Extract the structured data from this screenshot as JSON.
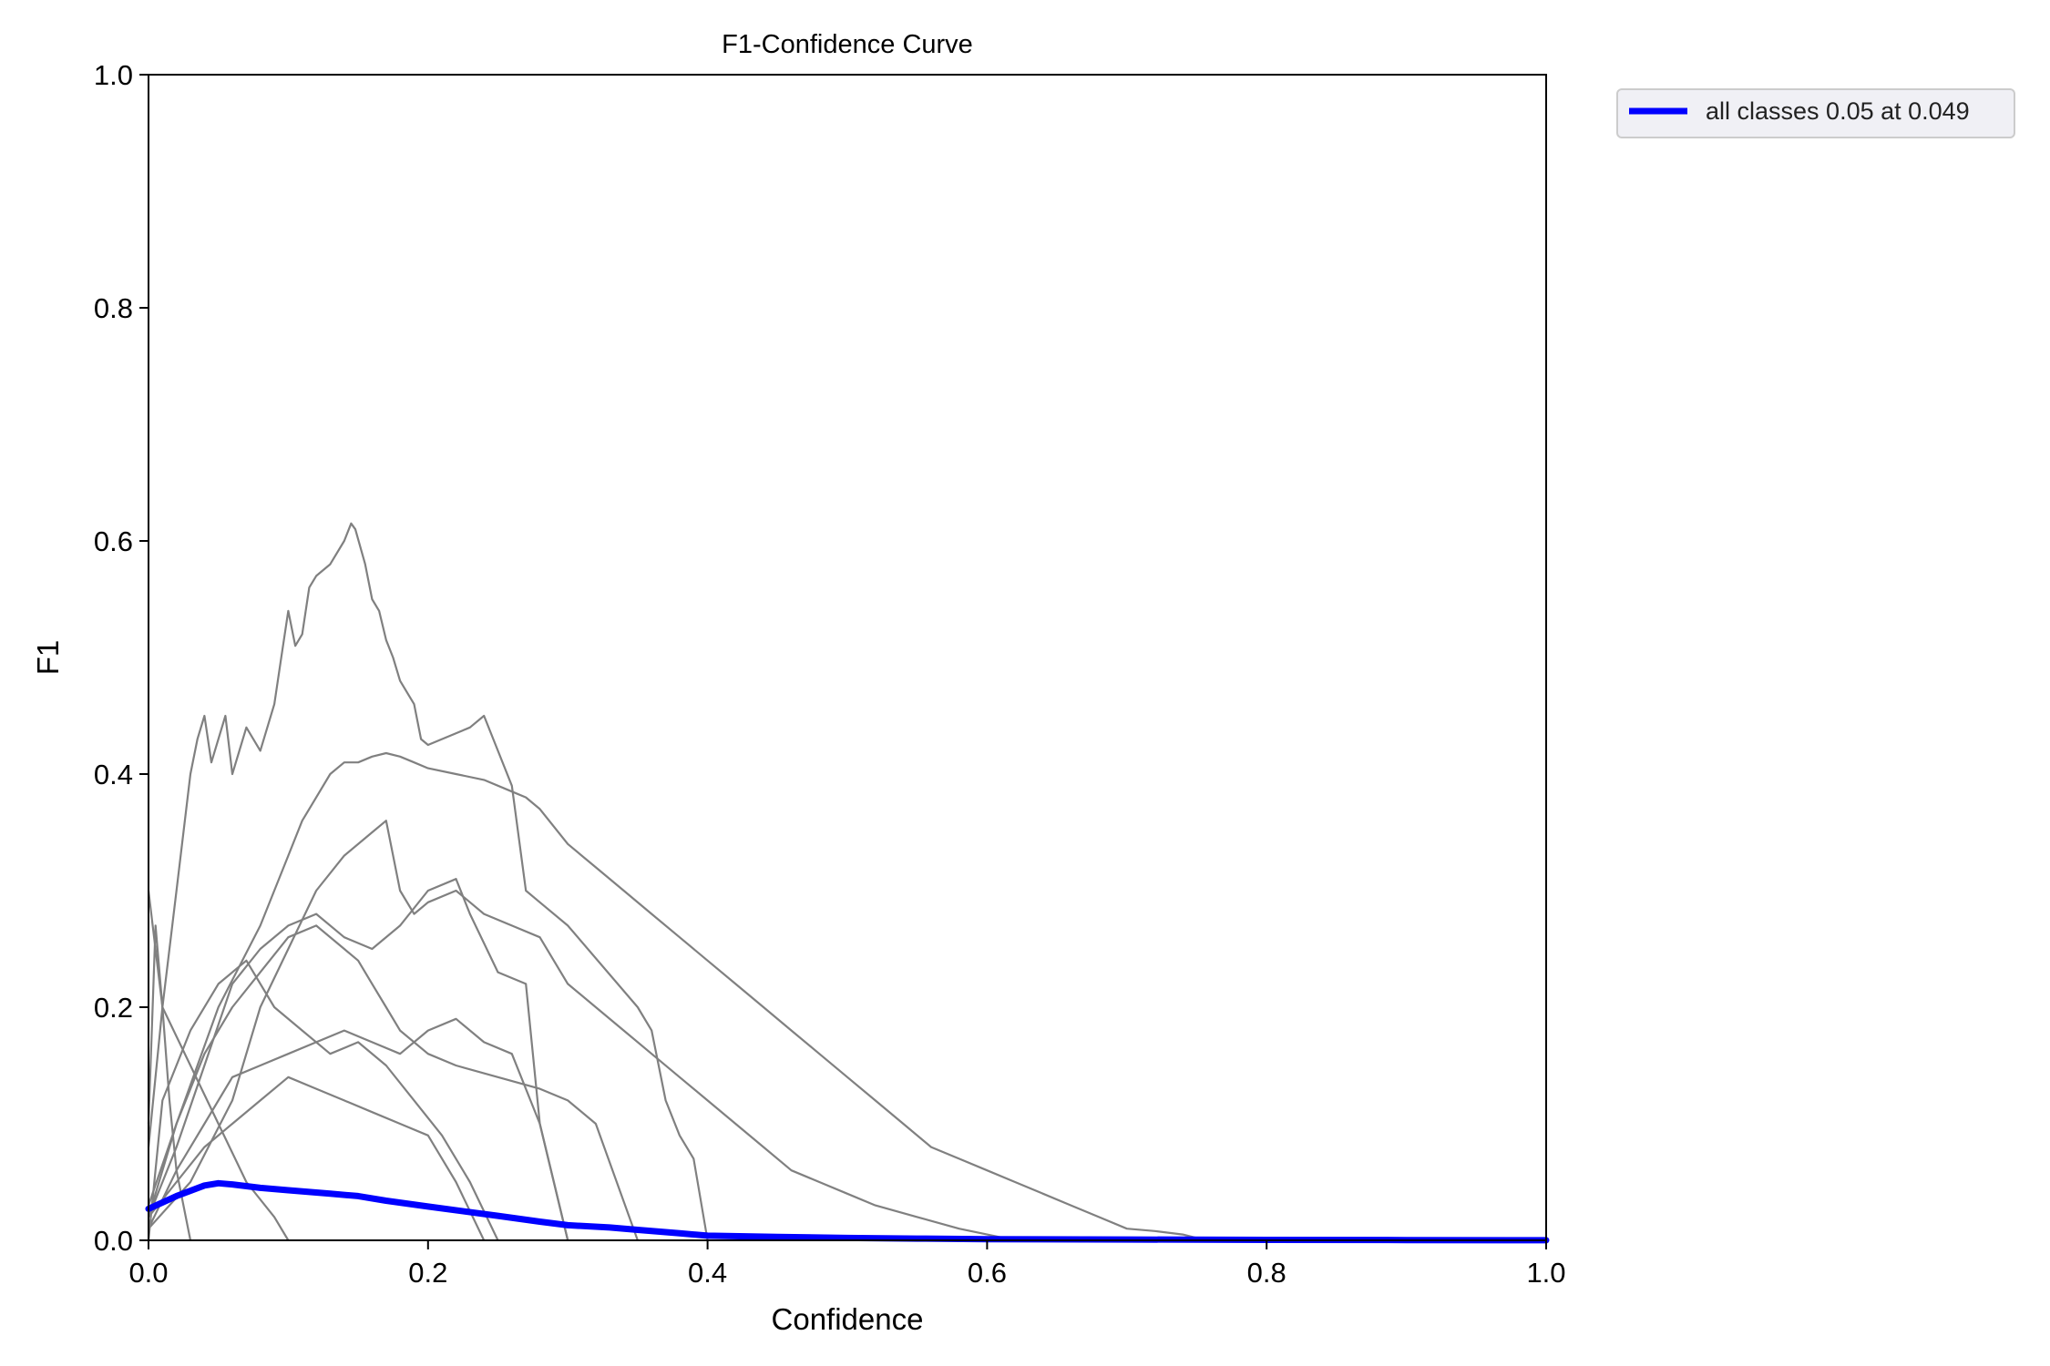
{
  "chart_data": {
    "type": "line",
    "title": "F1-Confidence Curve",
    "xlabel": "Confidence",
    "ylabel": "F1",
    "xlim": [
      0,
      1
    ],
    "ylim": [
      0,
      1
    ],
    "xticks": [
      0.0,
      0.2,
      0.4,
      0.6,
      0.8,
      1.0
    ],
    "yticks": [
      0.0,
      0.2,
      0.4,
      0.6,
      0.8,
      1.0
    ],
    "xtick_labels": [
      "0.0",
      "0.2",
      "0.4",
      "0.6",
      "0.8",
      "1.0"
    ],
    "ytick_labels": [
      "0.0",
      "0.2",
      "0.4",
      "0.6",
      "0.8",
      "1.0"
    ],
    "grid": false,
    "legend_position": "outside-top-right",
    "legend": [
      {
        "label": "all classes 0.05 at 0.049",
        "color": "#0000ff"
      }
    ],
    "class_color": "#808080",
    "summary_color": "#0000ff",
    "series": [
      {
        "x": [
          0,
          0.01,
          0.02,
          0.03,
          0.035,
          0.04,
          0.045,
          0.05,
          0.055,
          0.06,
          0.07,
          0.08,
          0.09,
          0.095,
          0.1,
          0.105,
          0.11,
          0.115,
          0.12,
          0.13,
          0.14,
          0.145,
          0.148,
          0.155,
          0.16,
          0.165,
          0.17,
          0.175,
          0.18,
          0.19,
          0.195,
          0.2,
          0.21,
          0.23,
          0.24,
          0.25,
          0.26,
          0.27,
          0.28,
          0.3,
          0.35,
          0.36,
          0.37,
          0.38,
          0.39,
          0.4
        ],
        "y": [
          0.08,
          0.2,
          0.3,
          0.4,
          0.43,
          0.45,
          0.41,
          0.43,
          0.45,
          0.4,
          0.44,
          0.42,
          0.46,
          0.5,
          0.54,
          0.51,
          0.52,
          0.56,
          0.57,
          0.58,
          0.6,
          0.615,
          0.61,
          0.58,
          0.55,
          0.54,
          0.515,
          0.5,
          0.48,
          0.46,
          0.43,
          0.425,
          0.43,
          0.44,
          0.45,
          0.42,
          0.39,
          0.3,
          0.29,
          0.27,
          0.2,
          0.18,
          0.12,
          0.09,
          0.07,
          0.0
        ]
      },
      {
        "x": [
          0,
          0.02,
          0.05,
          0.08,
          0.1,
          0.11,
          0.12,
          0.13,
          0.14,
          0.15,
          0.16,
          0.17,
          0.18,
          0.19,
          0.2,
          0.22,
          0.24,
          0.26,
          0.27,
          0.28,
          0.3,
          0.32,
          0.34,
          0.36,
          0.38,
          0.4,
          0.42,
          0.44,
          0.46,
          0.48,
          0.5,
          0.52,
          0.54,
          0.56,
          0.58,
          0.6,
          0.62,
          0.64,
          0.66,
          0.68,
          0.7,
          0.72,
          0.74,
          0.75,
          0.76
        ],
        "y": [
          0.02,
          0.1,
          0.2,
          0.27,
          0.33,
          0.36,
          0.38,
          0.4,
          0.41,
          0.41,
          0.415,
          0.418,
          0.415,
          0.41,
          0.405,
          0.4,
          0.395,
          0.385,
          0.38,
          0.37,
          0.34,
          0.32,
          0.3,
          0.28,
          0.26,
          0.24,
          0.22,
          0.2,
          0.18,
          0.16,
          0.14,
          0.12,
          0.1,
          0.08,
          0.07,
          0.06,
          0.05,
          0.04,
          0.03,
          0.02,
          0.01,
          0.008,
          0.005,
          0.002,
          0.0
        ]
      },
      {
        "x": [
          0,
          0.03,
          0.06,
          0.08,
          0.1,
          0.12,
          0.14,
          0.16,
          0.17,
          0.18,
          0.19,
          0.2,
          0.22,
          0.24,
          0.26,
          0.28,
          0.3,
          0.32,
          0.34,
          0.36,
          0.38,
          0.4,
          0.42,
          0.44,
          0.46,
          0.48,
          0.5,
          0.52,
          0.55,
          0.58,
          0.6,
          0.62
        ],
        "y": [
          0.01,
          0.05,
          0.12,
          0.2,
          0.25,
          0.3,
          0.33,
          0.35,
          0.36,
          0.3,
          0.28,
          0.29,
          0.3,
          0.28,
          0.27,
          0.26,
          0.22,
          0.2,
          0.18,
          0.16,
          0.14,
          0.12,
          0.1,
          0.08,
          0.06,
          0.05,
          0.04,
          0.03,
          0.02,
          0.01,
          0.005,
          0.0
        ]
      },
      {
        "x": [
          0,
          0.02,
          0.04,
          0.06,
          0.08,
          0.1,
          0.12,
          0.14,
          0.16,
          0.18,
          0.2,
          0.22,
          0.23,
          0.25,
          0.27,
          0.28,
          0.29,
          0.3
        ],
        "y": [
          0.02,
          0.08,
          0.15,
          0.22,
          0.25,
          0.27,
          0.28,
          0.26,
          0.25,
          0.27,
          0.3,
          0.31,
          0.28,
          0.23,
          0.22,
          0.1,
          0.05,
          0.0
        ]
      },
      {
        "x": [
          0,
          0.02,
          0.04,
          0.06,
          0.08,
          0.1,
          0.12,
          0.14,
          0.15,
          0.16,
          0.17,
          0.18,
          0.2,
          0.22,
          0.25,
          0.28,
          0.3,
          0.32,
          0.35
        ],
        "y": [
          0.03,
          0.1,
          0.16,
          0.2,
          0.23,
          0.26,
          0.27,
          0.25,
          0.24,
          0.22,
          0.2,
          0.18,
          0.16,
          0.15,
          0.14,
          0.13,
          0.12,
          0.1,
          0.0
        ]
      },
      {
        "x": [
          0,
          0.01,
          0.03,
          0.05,
          0.07,
          0.09,
          0.11,
          0.13,
          0.15,
          0.17,
          0.19,
          0.21,
          0.23,
          0.25
        ],
        "y": [
          0.0,
          0.12,
          0.18,
          0.22,
          0.24,
          0.2,
          0.18,
          0.16,
          0.17,
          0.15,
          0.12,
          0.09,
          0.05,
          0.0
        ]
      },
      {
        "x": [
          0,
          0.02,
          0.04,
          0.06,
          0.08,
          0.1,
          0.12,
          0.14,
          0.16,
          0.18,
          0.2,
          0.22,
          0.24,
          0.26,
          0.28,
          0.3
        ],
        "y": [
          0.01,
          0.06,
          0.1,
          0.14,
          0.15,
          0.16,
          0.17,
          0.18,
          0.17,
          0.16,
          0.18,
          0.19,
          0.17,
          0.16,
          0.1,
          0.0
        ]
      },
      {
        "x": [
          0,
          0.02,
          0.04,
          0.06,
          0.08,
          0.1,
          0.12,
          0.14,
          0.16,
          0.18,
          0.2,
          0.22,
          0.24
        ],
        "y": [
          0.02,
          0.05,
          0.08,
          0.1,
          0.12,
          0.14,
          0.13,
          0.12,
          0.11,
          0.1,
          0.09,
          0.05,
          0.0
        ]
      },
      {
        "x": [
          0,
          0.01,
          0.03,
          0.05,
          0.07,
          0.09,
          0.1
        ],
        "y": [
          0.3,
          0.2,
          0.15,
          0.1,
          0.05,
          0.02,
          0.0
        ]
      },
      {
        "x": [
          0,
          0.005,
          0.01,
          0.015,
          0.02,
          0.03
        ],
        "y": [
          0.1,
          0.27,
          0.2,
          0.12,
          0.06,
          0.0
        ]
      }
    ],
    "summary": {
      "name": "all classes 0.05 at 0.049",
      "x": [
        0,
        0.02,
        0.04,
        0.05,
        0.06,
        0.08,
        0.1,
        0.13,
        0.15,
        0.17,
        0.2,
        0.25,
        0.28,
        0.3,
        0.33,
        0.35,
        0.38,
        0.4,
        0.45,
        0.5,
        0.55,
        0.6,
        0.7,
        0.8,
        0.9,
        1.0
      ],
      "y": [
        0.027,
        0.038,
        0.047,
        0.049,
        0.048,
        0.045,
        0.043,
        0.04,
        0.038,
        0.034,
        0.029,
        0.021,
        0.016,
        0.013,
        0.011,
        0.009,
        0.006,
        0.004,
        0.003,
        0.002,
        0.0015,
        0.001,
        0.0007,
        0.0004,
        0.0002,
        0.0001
      ]
    }
  }
}
